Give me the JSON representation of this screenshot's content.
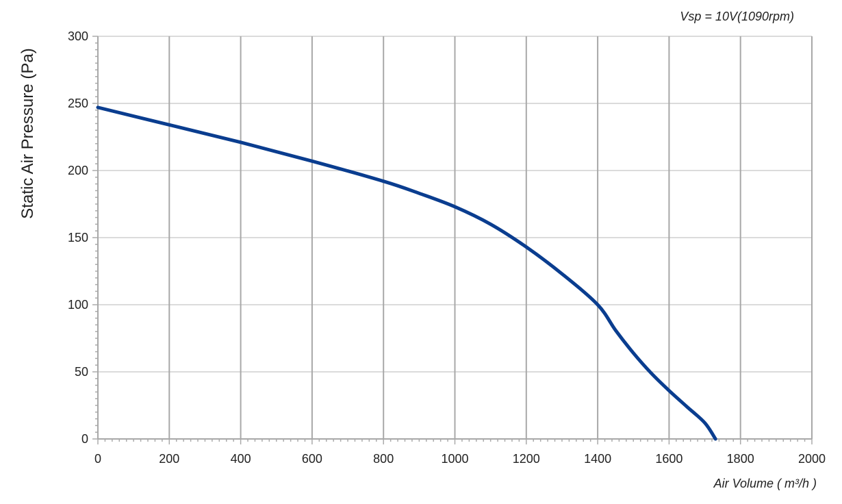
{
  "chart_data": {
    "type": "line",
    "annotation": "Vsp = 10V(1090rpm)",
    "xlabel": "Air Volume ( m³/h )",
    "ylabel": "Static Air Pressure  (Pa)",
    "xlim": [
      0,
      2000
    ],
    "ylim": [
      0,
      300
    ],
    "x_ticks": [
      0,
      200,
      400,
      600,
      800,
      1000,
      1200,
      1400,
      1600,
      1800,
      2000
    ],
    "y_ticks": [
      0,
      50,
      100,
      150,
      200,
      250,
      300
    ],
    "grid": true,
    "legend": "none",
    "series": [
      {
        "color": "#0a3d8f",
        "x": [
          0,
          200,
          400,
          600,
          800,
          900,
          1000,
          1100,
          1200,
          1300,
          1400,
          1450,
          1500,
          1550,
          1600,
          1650,
          1700,
          1730
        ],
        "y": [
          247,
          234,
          221,
          207,
          192,
          183,
          173,
          160,
          143,
          123,
          100,
          81,
          64,
          49,
          36,
          24,
          12,
          0
        ]
      }
    ]
  }
}
